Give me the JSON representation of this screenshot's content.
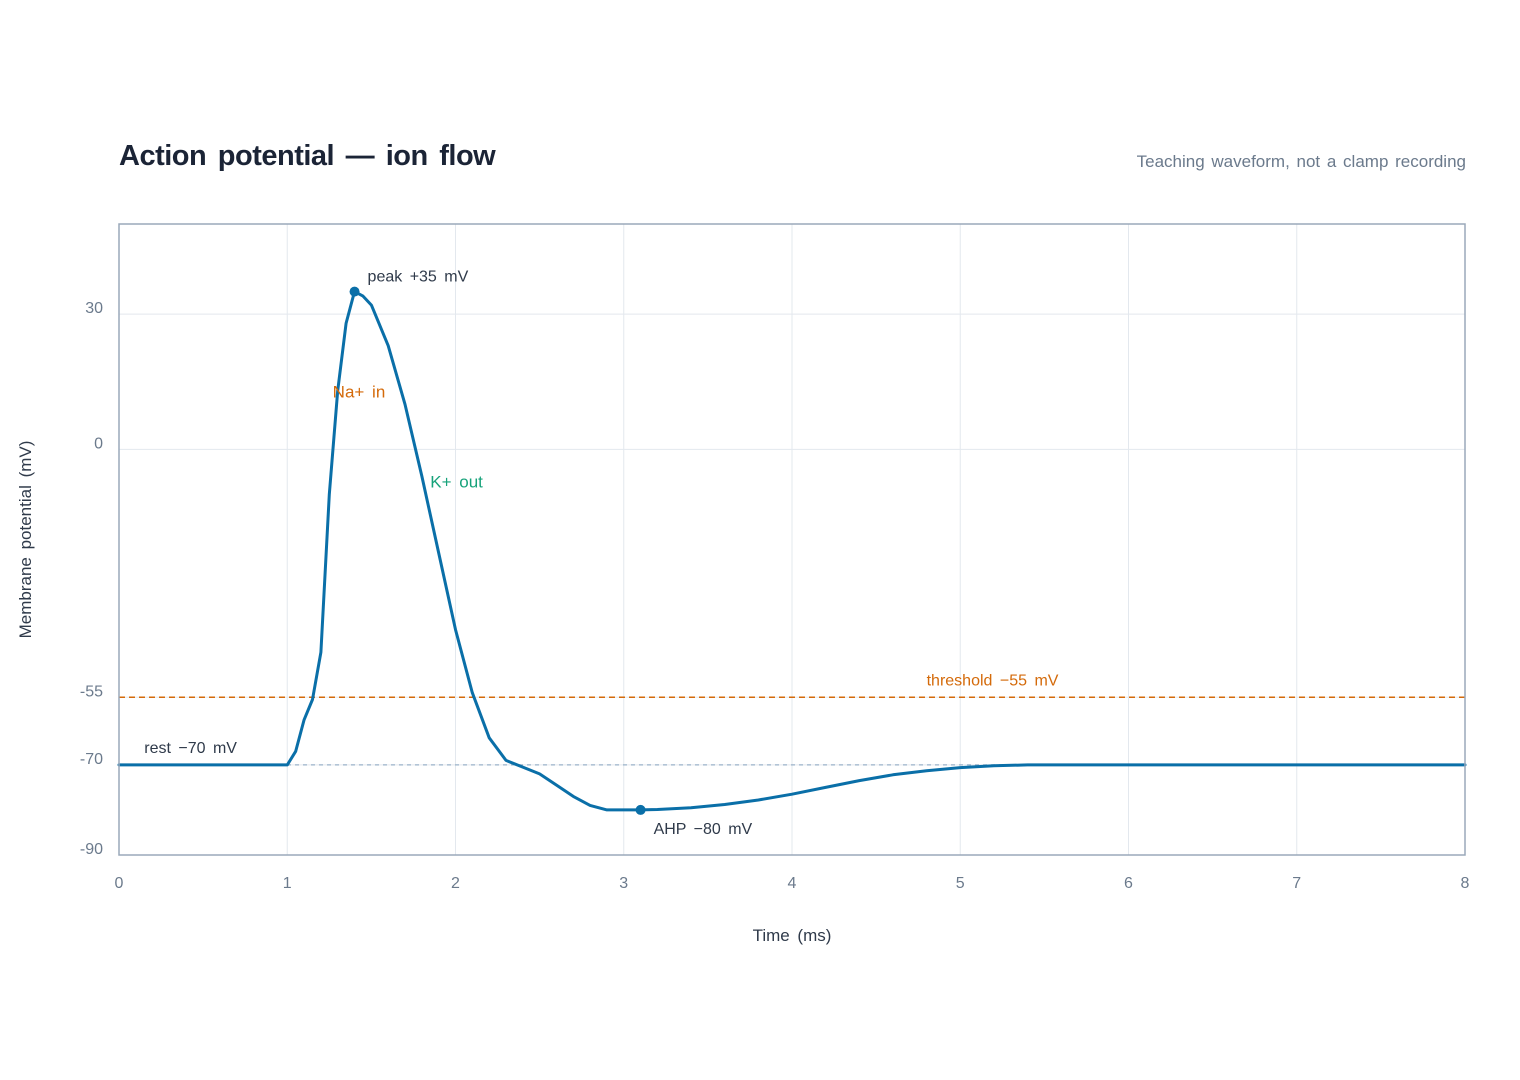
{
  "chart_data": {
    "type": "line",
    "title": "Action potential — ion flow",
    "subtitle": "Teaching waveform, not a clamp recording",
    "xlabel": "Time (ms)",
    "ylabel": "Membrane potential (mV)",
    "xlim": [
      0,
      8
    ],
    "ylim": [
      -90,
      50
    ],
    "x_ticks": [
      0,
      1,
      2,
      3,
      4,
      5,
      6,
      7,
      8
    ],
    "y_ticks": [
      -90,
      -70,
      -55,
      0,
      30
    ],
    "grid": true,
    "series": [
      {
        "color": "#0a6fa8",
        "x": [
          0,
          1.0,
          1.05,
          1.1,
          1.15,
          1.2,
          1.25,
          1.3,
          1.35,
          1.4,
          1.45,
          1.5,
          1.6,
          1.7,
          1.8,
          1.9,
          2.0,
          2.1,
          2.2,
          2.3,
          2.4,
          2.5,
          2.6,
          2.7,
          2.8,
          2.9,
          3.0,
          3.1,
          3.2,
          3.4,
          3.6,
          3.8,
          4.0,
          4.2,
          4.4,
          4.6,
          4.8,
          5.0,
          5.2,
          5.4,
          5.6,
          6.0,
          7.0,
          8.0
        ],
        "y": [
          -70,
          -70,
          -67,
          -60,
          -55.5,
          -45,
          -10,
          13,
          28,
          35,
          34,
          32,
          23,
          10,
          -6,
          -23,
          -40,
          -54,
          -64,
          -69,
          -70.5,
          -72,
          -74.5,
          -77,
          -79,
          -80,
          -80,
          -80,
          -79.9,
          -79.5,
          -78.8,
          -77.8,
          -76.5,
          -75,
          -73.5,
          -72.2,
          -71.3,
          -70.6,
          -70.2,
          -70,
          -70,
          -70,
          -70,
          -70
        ]
      }
    ],
    "reference_lines": [
      {
        "label": "threshold −55 mV",
        "y": -55,
        "color": "#d46a0a",
        "style": "dashed"
      },
      {
        "label": "rest −70 mV",
        "y": -70,
        "color": "#9bb3c9",
        "style": "dotted"
      }
    ],
    "annotations": [
      {
        "text": "peak +35 mV",
        "x": 1.4,
        "y": 35,
        "marker": true,
        "color": "#2f3a4a"
      },
      {
        "text": "AHP −80 mV",
        "x": 3.1,
        "y": -80,
        "marker": true,
        "color": "#2f3a4a"
      },
      {
        "text": "Na+ in",
        "x": 1.27,
        "y": 11.5,
        "marker": false,
        "color": "#d46a0a"
      },
      {
        "text": "K+ out",
        "x": 1.85,
        "y": -8.5,
        "marker": false,
        "color": "#16a27a"
      }
    ]
  }
}
